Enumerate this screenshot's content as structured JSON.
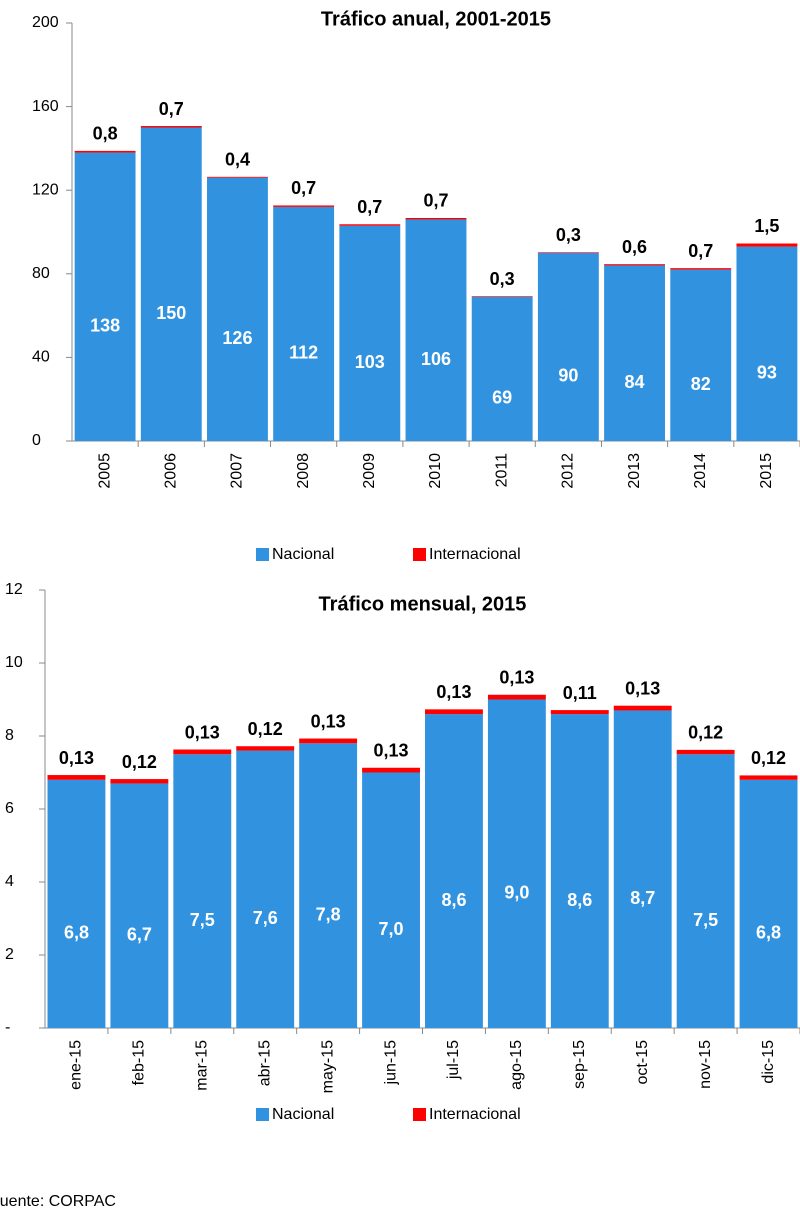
{
  "chart_data": [
    {
      "type": "bar",
      "stacked": true,
      "title": "Tráfico anual, 2001-2015",
      "categories": [
        "2005",
        "2006",
        "2007",
        "2008",
        "2009",
        "2010",
        "2011",
        "2012",
        "2013",
        "2014",
        "2015"
      ],
      "series": [
        {
          "name": "Nacional",
          "color": "#3193e0",
          "values": [
            138,
            150,
            126,
            112,
            103,
            106,
            69,
            90,
            84,
            82,
            93
          ]
        },
        {
          "name": "Internacional",
          "color": "#ff0000",
          "values": [
            0.8,
            0.7,
            0.4,
            0.7,
            0.7,
            0.7,
            0.3,
            0.3,
            0.6,
            0.7,
            1.5
          ],
          "value_labels": [
            "0,8",
            "0,7",
            "0,4",
            "0,7",
            "0,7",
            "0,7",
            "0,3",
            "0,3",
            "0,6",
            "0,7",
            "1,5"
          ]
        }
      ],
      "ylim": [
        0,
        200
      ],
      "yticks": [
        0,
        40,
        80,
        120,
        160,
        200
      ],
      "legend": "bottom"
    },
    {
      "type": "bar",
      "stacked": true,
      "title": "Tráfico mensual, 2015",
      "categories": [
        "ene-15",
        "feb-15",
        "mar-15",
        "abr-15",
        "may-15",
        "jun-15",
        "jul-15",
        "ago-15",
        "sep-15",
        "oct-15",
        "nov-15",
        "dic-15"
      ],
      "series": [
        {
          "name": "Nacional",
          "color": "#3193e0",
          "values": [
            6.8,
            6.7,
            7.5,
            7.6,
            7.8,
            7.0,
            8.6,
            9.0,
            8.6,
            8.7,
            7.5,
            6.8
          ],
          "value_labels": [
            "6,8",
            "6,7",
            "7,5",
            "7,6",
            "7,8",
            "7,0",
            "8,6",
            "9,0",
            "8,6",
            "8,7",
            "7,5",
            "6,8"
          ]
        },
        {
          "name": "Internacional",
          "color": "#ff0000",
          "values": [
            0.13,
            0.12,
            0.13,
            0.12,
            0.13,
            0.13,
            0.13,
            0.13,
            0.11,
            0.13,
            0.12,
            0.12
          ],
          "value_labels": [
            "0,13",
            "0,12",
            "0,13",
            "0,12",
            "0,13",
            "0,13",
            "0,13",
            "0,13",
            "0,11",
            "0,13",
            "0,12",
            "0,12"
          ]
        }
      ],
      "ylim": [
        0,
        12
      ],
      "yticks": [
        {
          "value": 0,
          "label": "-"
        },
        2,
        4,
        6,
        8,
        10,
        12
      ],
      "legend": "bottom",
      "source": "Fuente: CORPAC"
    }
  ]
}
